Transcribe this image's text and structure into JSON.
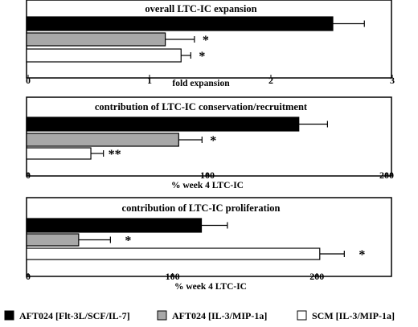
{
  "colors": {
    "AFT024 [Flt-3L/SCF/IL-7]": "#000000",
    "AFT024 [IL-3/MIP-1a]": "#a8a8a8",
    "SCM [IL-3/MIP-1a]": "#ffffff"
  },
  "legend": {
    "placement": "bottom",
    "items": [
      "AFT024 [Flt-3L/SCF/IL-7]",
      "AFT024 [IL-3/MIP-1a]",
      "SCM [IL-3/MIP-1a]"
    ]
  },
  "chart_data": [
    {
      "type": "bar",
      "orientation": "horizontal",
      "title": "overall LTC-IC expansion",
      "xlabel": "fold expansion",
      "xlim": [
        0,
        3
      ],
      "ticks": [
        "0",
        "1",
        "2",
        "3"
      ],
      "grid": false,
      "categories": [
        "AFT024 [Flt-3L/SCF/IL-7]",
        "AFT024 [IL-3/MIP-1a]",
        "SCM [IL-3/MIP-1a]"
      ],
      "values": [
        2.51,
        1.13,
        1.26
      ],
      "errors": [
        0.26,
        0.24,
        0.08
      ],
      "significance": [
        "",
        "*",
        "*"
      ]
    },
    {
      "type": "bar",
      "orientation": "horizontal",
      "title": "contribution of LTC-IC conservation/recruitment",
      "xlabel": "% week 4 LTC-IC",
      "xlim": [
        0,
        200
      ],
      "ticks": [
        "0",
        "100",
        "200"
      ],
      "grid": false,
      "categories": [
        "AFT024 [Flt-3L/SCF/IL-7]",
        "AFT024 [IL-3/MIP-1a]",
        "SCM [IL-3/MIP-1a]"
      ],
      "values": [
        151,
        84,
        35
      ],
      "errors": [
        16,
        13,
        7
      ],
      "significance": [
        "",
        "*",
        "**"
      ]
    },
    {
      "type": "bar",
      "orientation": "horizontal",
      "title": "contribution of LTC-IC proliferation",
      "xlabel": "% week 4 LTC-IC",
      "xlim": [
        0,
        250
      ],
      "ticks": [
        "0",
        "100",
        "200"
      ],
      "grid": false,
      "categories": [
        "AFT024 [Flt-3L/SCF/IL-7]",
        "AFT024 [IL-3/MIP-1a]",
        "SCM [IL-3/MIP-1a]"
      ],
      "values": [
        120,
        35,
        202
      ],
      "errors": [
        18,
        22,
        17
      ],
      "significance": [
        "",
        "*",
        "*"
      ]
    }
  ]
}
